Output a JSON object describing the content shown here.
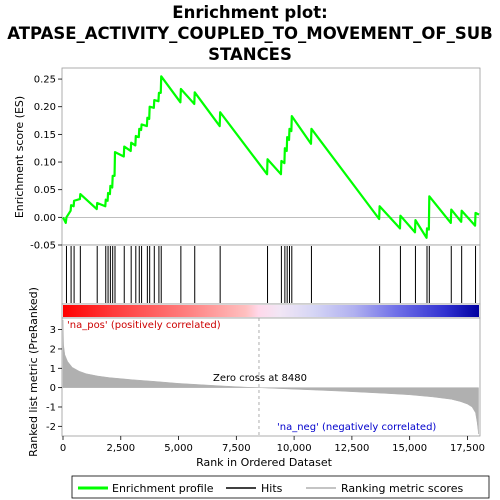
{
  "chart_data": {
    "type": "line",
    "title_lines": [
      "Enrichment plot:",
      "ATPASE_ACTIVITY_COUPLED_TO_MOVEMENT_OF_SUB",
      "STANCES"
    ],
    "xlabel": "Rank in Ordered Dataset",
    "ylabel_top": "Enrichment score (ES)",
    "ylabel_bottom": "Ranked list metric (PreRanked)",
    "xlim": [
      0,
      18000
    ],
    "x_ticks": [
      0,
      2500,
      5000,
      7500,
      10000,
      12500,
      15000,
      17500
    ],
    "x_tick_labels": [
      "0",
      "2,500",
      "5,000",
      "7,500",
      "10,000",
      "12,500",
      "15,000",
      "17,500"
    ],
    "es_ylim": [
      -0.05,
      0.27
    ],
    "es_ticks": [
      -0.05,
      0.0,
      0.05,
      0.1,
      0.15,
      0.2,
      0.25
    ],
    "es_tick_labels": [
      "-0.05",
      "0.00",
      "0.05",
      "0.10",
      "0.15",
      "0.20",
      "0.25"
    ],
    "metric_ylim": [
      -2.5,
      3.6
    ],
    "metric_ticks": [
      -2,
      -1,
      0,
      1,
      2,
      3
    ],
    "metric_tick_labels": [
      "-2",
      "-1",
      "0",
      "1",
      "2",
      "3"
    ],
    "hits": [
      150,
      350,
      480,
      750,
      1480,
      1850,
      1950,
      2050,
      2150,
      2250,
      2650,
      2950,
      3150,
      3300,
      3400,
      3650,
      3750,
      3950,
      4150,
      4250,
      5100,
      5700,
      6800,
      8850,
      9450,
      9600,
      9700,
      9800,
      9900,
      10750,
      13700,
      14600,
      15250,
      15750,
      15850,
      16800,
      17250,
      17850
    ],
    "es_points": [
      [
        0,
        0.0
      ],
      [
        120,
        -0.01
      ],
      [
        150,
        0.0
      ],
      [
        330,
        0.012
      ],
      [
        350,
        0.022
      ],
      [
        460,
        0.02
      ],
      [
        480,
        0.03
      ],
      [
        730,
        0.033
      ],
      [
        750,
        0.042
      ],
      [
        1460,
        0.015
      ],
      [
        1480,
        0.026
      ],
      [
        1830,
        0.02
      ],
      [
        1850,
        0.032
      ],
      [
        1930,
        0.03
      ],
      [
        1950,
        0.044
      ],
      [
        2030,
        0.042
      ],
      [
        2050,
        0.057
      ],
      [
        2130,
        0.054
      ],
      [
        2150,
        0.075
      ],
      [
        2230,
        0.075
      ],
      [
        2250,
        0.118
      ],
      [
        2630,
        0.11
      ],
      [
        2650,
        0.128
      ],
      [
        2930,
        0.12
      ],
      [
        2950,
        0.135
      ],
      [
        3130,
        0.13
      ],
      [
        3150,
        0.147
      ],
      [
        3280,
        0.145
      ],
      [
        3300,
        0.16
      ],
      [
        3380,
        0.158
      ],
      [
        3400,
        0.168
      ],
      [
        3630,
        0.165
      ],
      [
        3650,
        0.18
      ],
      [
        3730,
        0.178
      ],
      [
        3750,
        0.2
      ],
      [
        3930,
        0.198
      ],
      [
        3950,
        0.212
      ],
      [
        4130,
        0.21
      ],
      [
        4150,
        0.225
      ],
      [
        4230,
        0.225
      ],
      [
        4250,
        0.255
      ],
      [
        5080,
        0.208
      ],
      [
        5100,
        0.232
      ],
      [
        5680,
        0.205
      ],
      [
        5700,
        0.226
      ],
      [
        6780,
        0.165
      ],
      [
        6800,
        0.19
      ],
      [
        8830,
        0.078
      ],
      [
        8850,
        0.105
      ],
      [
        9430,
        0.078
      ],
      [
        9450,
        0.102
      ],
      [
        9580,
        0.098
      ],
      [
        9600,
        0.125
      ],
      [
        9680,
        0.12
      ],
      [
        9700,
        0.145
      ],
      [
        9780,
        0.14
      ],
      [
        9800,
        0.16
      ],
      [
        9880,
        0.156
      ],
      [
        9900,
        0.183
      ],
      [
        10730,
        0.133
      ],
      [
        10750,
        0.16
      ],
      [
        13680,
        -0.003
      ],
      [
        13700,
        0.02
      ],
      [
        14580,
        -0.02
      ],
      [
        14600,
        0.003
      ],
      [
        15230,
        -0.027
      ],
      [
        15250,
        -0.005
      ],
      [
        15730,
        -0.037
      ],
      [
        15750,
        -0.02
      ],
      [
        15830,
        -0.022
      ],
      [
        15850,
        0.038
      ],
      [
        16780,
        -0.01
      ],
      [
        16800,
        0.014
      ],
      [
        17230,
        -0.008
      ],
      [
        17250,
        0.012
      ],
      [
        17830,
        -0.015
      ],
      [
        17850,
        0.008
      ],
      [
        18000,
        0.005
      ]
    ],
    "metric_curve": [
      [
        0,
        3.5
      ],
      [
        25,
        2.2
      ],
      [
        80,
        1.7
      ],
      [
        200,
        1.35
      ],
      [
        400,
        1.05
      ],
      [
        700,
        0.85
      ],
      [
        1000,
        0.72
      ],
      [
        1500,
        0.6
      ],
      [
        2000,
        0.52
      ],
      [
        3000,
        0.41
      ],
      [
        4000,
        0.32
      ],
      [
        5000,
        0.22
      ],
      [
        6000,
        0.15
      ],
      [
        7000,
        0.08
      ],
      [
        8000,
        0.02
      ],
      [
        8480,
        0.0
      ],
      [
        9000,
        -0.03
      ],
      [
        10000,
        -0.08
      ],
      [
        11000,
        -0.13
      ],
      [
        12000,
        -0.18
      ],
      [
        13000,
        -0.24
      ],
      [
        14000,
        -0.3
      ],
      [
        15000,
        -0.37
      ],
      [
        16000,
        -0.48
      ],
      [
        16800,
        -0.6
      ],
      [
        17200,
        -0.72
      ],
      [
        17500,
        -0.85
      ],
      [
        17700,
        -1.0
      ],
      [
        17850,
        -1.3
      ],
      [
        17920,
        -1.8
      ],
      [
        17980,
        -2.4
      ]
    ],
    "zero_cross_rank": 8480,
    "zero_cross_label": "Zero cross at 8480",
    "pos_label": "'na_pos' (positively correlated)",
    "neg_label": "'na_neg' (negatively correlated)",
    "pos_label_color": "#cc0000",
    "neg_label_color": "#0000cc",
    "es_line_color": "#00ff00",
    "hit_color": "#000000",
    "metric_color": "#b0b0b0",
    "legend": [
      "Enrichment profile",
      "Hits",
      "Ranking metric scores"
    ]
  }
}
